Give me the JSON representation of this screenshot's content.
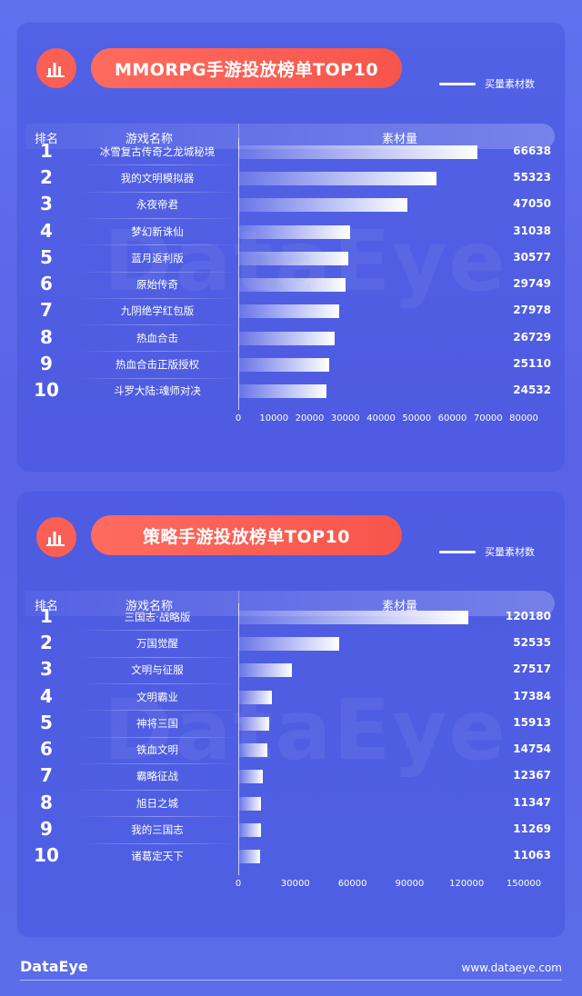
{
  "footer": {
    "logo": "DataEye",
    "url": "www.dataeye.com"
  },
  "watermark": "DataEye",
  "colors": {
    "accent": "#fa5f55",
    "background": "#5f72ee",
    "bar": "#ffffff"
  },
  "icons": {
    "title_icon": "bar-chart-icon"
  },
  "charts": [
    {
      "title": "MMORPG手游投放榜单TOP10",
      "legend": "买量素材数",
      "headers": {
        "rank": "排名",
        "name": "游戏名称",
        "value": "素材量"
      }
    },
    {
      "title": "策略手游投放榜单TOP10",
      "legend": "买量素材数",
      "headers": {
        "rank": "排名",
        "name": "游戏名称",
        "value": "素材量"
      }
    }
  ],
  "chart_data": [
    {
      "type": "bar",
      "title": "MMORPG手游投放榜单TOP10",
      "ranks": [
        "1",
        "2",
        "3",
        "4",
        "5",
        "6",
        "7",
        "8",
        "9",
        "10"
      ],
      "categories": [
        "冰雪复古传奇之龙城秘境",
        "我的文明模拟器",
        "永夜帝君",
        "梦幻新诛仙",
        "蓝月返利版",
        "原始传奇",
        "九阴绝学红包版",
        "热血合击",
        "热血合击正版授权",
        "斗罗大陆:魂师对决"
      ],
      "values": [
        66638,
        55323,
        47050,
        31038,
        30577,
        29749,
        27978,
        26729,
        25110,
        24532
      ],
      "value_labels": [
        "66638",
        "55323",
        "47050",
        "31038",
        "30577",
        "29749",
        "27978",
        "26729",
        "25110",
        "24532"
      ],
      "xlim": [
        0,
        80000
      ],
      "ticks": [
        "0",
        "10000",
        "20000",
        "30000",
        "40000",
        "50000",
        "60000",
        "70000",
        "80000"
      ],
      "legend": "买量素材数",
      "orientation": "horizontal"
    },
    {
      "type": "bar",
      "title": "策略手游投放榜单TOP10",
      "ranks": [
        "1",
        "2",
        "3",
        "4",
        "5",
        "6",
        "7",
        "8",
        "9",
        "10"
      ],
      "categories": [
        "三国志·战略版",
        "万国觉醒",
        "文明与征服",
        "文明霸业",
        "神将三国",
        "铁血文明",
        "霸略征战",
        "旭日之城",
        "我的三国志",
        "诸葛定天下"
      ],
      "values": [
        120180,
        52535,
        27517,
        17384,
        15913,
        14754,
        12367,
        11347,
        11269,
        11063
      ],
      "value_labels": [
        "120180",
        "52535",
        "27517",
        "17384",
        "15913",
        "14754",
        "12367",
        "11347",
        "11269",
        "11063"
      ],
      "xlim": [
        0,
        150000
      ],
      "ticks": [
        "0",
        "30000",
        "60000",
        "90000",
        "120000",
        "150000"
      ],
      "legend": "买量素材数",
      "orientation": "horizontal"
    }
  ]
}
